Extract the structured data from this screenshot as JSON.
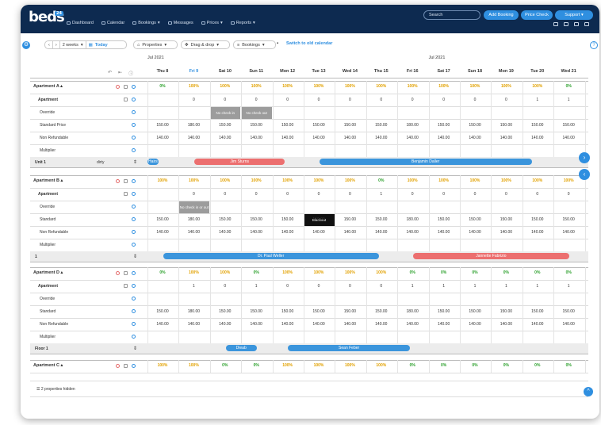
{
  "app": {
    "logo_text": "beds",
    "logo_badge": "24",
    "nav": [
      {
        "label": "Dashboard"
      },
      {
        "label": "Calendar"
      },
      {
        "label": "Bookings"
      },
      {
        "label": "Messages"
      },
      {
        "label": "Prices"
      },
      {
        "label": "Reports"
      }
    ],
    "search_placeholder": "Search",
    "add_booking": "Add Booking",
    "price_check": "Price Check",
    "support": "Support",
    "accent": "#2f8fe0",
    "navy": "#0d2a50"
  },
  "toolbar": {
    "range": "2 weeks",
    "today": "Today",
    "properties": "Properties",
    "drag": "Drag & drop",
    "bookings": "Bookings",
    "old_calendar": "Switch to old calendar"
  },
  "months": [
    "Jul 2021",
    "Jul 2021"
  ],
  "days": [
    "Thu 8",
    "Fri 9",
    "Sat 10",
    "Sun 11",
    "Mon 12",
    "Tue 13",
    "Wed 14",
    "Thu 15",
    "Fri 16",
    "Sat 17",
    "Sun 18",
    "Mon 19",
    "Tue 20",
    "Wed 21"
  ],
  "properties": [
    {
      "name": "Apartment A",
      "occupancy": [
        "0%",
        "100%",
        "100%",
        "100%",
        "100%",
        "100%",
        "100%",
        "100%",
        "100%",
        "100%",
        "100%",
        "100%",
        "100%",
        "0%"
      ],
      "room": "Apartment",
      "avail": [
        "",
        "0",
        "0",
        "0",
        "0",
        "0",
        "0",
        "0",
        "0",
        "0",
        "0",
        "0",
        "1",
        "1"
      ],
      "override_label": "Override",
      "override_cells": [
        {
          "i": 2,
          "text": "No check in"
        },
        {
          "i": 3,
          "text": "No check out"
        }
      ],
      "price1_label": "Standard Price",
      "price1": [
        "150.00",
        "180.00",
        "150.00",
        "150.00",
        "150.00",
        "150.00",
        "150.00",
        "150.00",
        "180.00",
        "150.00",
        "150.00",
        "150.00",
        "150.00",
        "150.00"
      ],
      "price2_label": "Non Refundable",
      "price2": [
        "140.00",
        "140.00",
        "140.00",
        "140.00",
        "140.00",
        "140.00",
        "140.00",
        "140.00",
        "140.00",
        "140.00",
        "140.00",
        "140.00",
        "140.00",
        "140.00"
      ],
      "multiplier_label": "Multiplier",
      "unit_label": "Unit 1",
      "unit_status": "dirty",
      "bookings": [
        {
          "guest": "Hairs",
          "color": "blue",
          "start": 0,
          "end": 0.35
        },
        {
          "guest": "Jim Sturns",
          "color": "salmon",
          "start": 1.5,
          "end": 4.4
        },
        {
          "guest": "Benjamin Daller",
          "color": "blue",
          "start": 5.5,
          "end": 12.3
        }
      ]
    },
    {
      "name": "Apartment B",
      "occupancy": [
        "100%",
        "100%",
        "100%",
        "100%",
        "100%",
        "100%",
        "100%",
        "0%",
        "100%",
        "100%",
        "100%",
        "100%",
        "100%",
        "100%"
      ],
      "room": "Apartment",
      "avail": [
        "",
        "0",
        "0",
        "0",
        "0",
        "0",
        "0",
        "1",
        "0",
        "0",
        "0",
        "0",
        "0",
        "0"
      ],
      "override_label": "Override",
      "override_cells": [
        {
          "i": 1,
          "text": "No check in or out"
        }
      ],
      "black_cells": [
        {
          "i": 5,
          "text": "Blackout"
        }
      ],
      "price1_label": "Standard",
      "price1": [
        "150.00",
        "180.00",
        "150.00",
        "150.00",
        "150.00",
        "150.00",
        "150.00",
        "150.00",
        "180.00",
        "150.00",
        "150.00",
        "150.00",
        "150.00",
        "150.00"
      ],
      "price2_label": "Non Refundable",
      "price2": [
        "140.00",
        "140.00",
        "140.00",
        "140.00",
        "140.00",
        "140.00",
        "140.00",
        "140.00",
        "140.00",
        "140.00",
        "140.00",
        "140.00",
        "140.00",
        "140.00"
      ],
      "multiplier_label": "Multiplier",
      "unit_label": "1",
      "unit_status": "",
      "bookings": [
        {
          "guest": "Dr. Paul Weller",
          "color": "blue",
          "start": 0.5,
          "end": 7.4
        },
        {
          "guest": "Jannette Fabrizio",
          "color": "salmon",
          "start": 8.5,
          "end": 13.5
        }
      ]
    },
    {
      "name": "Apartment D",
      "occupancy": [
        "0%",
        "100%",
        "100%",
        "0%",
        "100%",
        "100%",
        "100%",
        "100%",
        "0%",
        "0%",
        "0%",
        "0%",
        "0%",
        "0%"
      ],
      "room": "Apartment",
      "avail": [
        "",
        "1",
        "0",
        "1",
        "0",
        "0",
        "0",
        "0",
        "1",
        "1",
        "1",
        "1",
        "1",
        "1"
      ],
      "override_label": "Override",
      "override_cells": [],
      "price1_label": "Standard",
      "price1": [
        "150.00",
        "180.00",
        "150.00",
        "150.00",
        "150.00",
        "150.00",
        "150.00",
        "150.00",
        "180.00",
        "150.00",
        "150.00",
        "150.00",
        "150.00",
        "150.00"
      ],
      "price2_label": "Non Refundable",
      "price2": [
        "140.00",
        "140.00",
        "140.00",
        "140.00",
        "140.00",
        "140.00",
        "140.00",
        "140.00",
        "140.00",
        "140.00",
        "140.00",
        "140.00",
        "140.00",
        "140.00"
      ],
      "multiplier_label": "Multiplier",
      "unit_label": "Floor 1",
      "unit_status": "",
      "bookings": [
        {
          "guest": "Dieab",
          "color": "blue",
          "start": 2.5,
          "end": 3.5
        },
        {
          "guest": "Sean Feber",
          "color": "blue",
          "start": 4.5,
          "end": 8.4
        }
      ]
    },
    {
      "name": "Apartment C",
      "occupancy": [
        "100%",
        "100%",
        "0%",
        "0%",
        "100%",
        "100%",
        "100%",
        "100%",
        "0%",
        "0%",
        "0%",
        "0%",
        "0%",
        "0%"
      ]
    }
  ],
  "hidden_note": "2 properties hidden"
}
